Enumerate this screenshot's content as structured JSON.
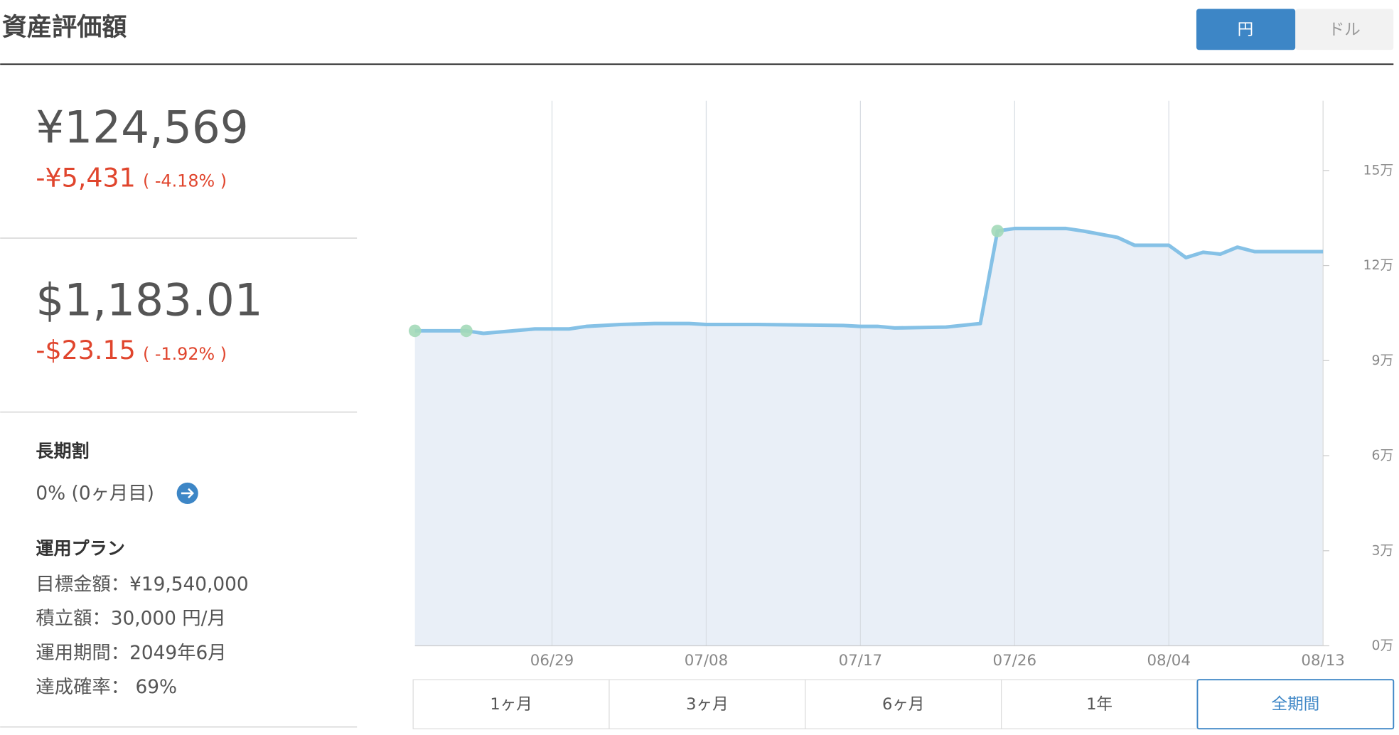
{
  "header": {
    "title": "資産評価額",
    "toggle": [
      "円",
      "ドル"
    ]
  },
  "summary": [
    {
      "amount": "¥124,569",
      "change": "-¥5,431",
      "change_pct": "( -4.18% )"
    },
    {
      "amount": "$1,183.01",
      "change": "-$23.15",
      "change_pct": "( -1.92% )"
    }
  ],
  "discount": {
    "title": "長期割",
    "text": "0% (0ヶ月目)"
  },
  "plan": {
    "title": "運用プラン",
    "lines": [
      "目標金額：¥19,540,000",
      "積立額：30,000 円/月",
      "運用期間：2049年6月",
      "達成確率： 69%"
    ]
  },
  "chart_data": {
    "type": "area",
    "x": [
      "06/21",
      "06/24",
      "06/25",
      "06/28",
      "06/30",
      "07/01",
      "07/03",
      "07/05",
      "07/07",
      "07/08",
      "07/10",
      "07/11",
      "07/16",
      "07/17",
      "07/18",
      "07/19",
      "07/22",
      "07/24",
      "07/25",
      "07/26",
      "07/29",
      "07/30",
      "08/01",
      "08/02",
      "08/04",
      "08/05",
      "08/06",
      "08/07",
      "08/08",
      "08/09",
      "08/13"
    ],
    "values": [
      9.94,
      9.94,
      9.86,
      10.0,
      10.0,
      10.08,
      10.14,
      10.17,
      10.17,
      10.14,
      10.14,
      10.14,
      10.11,
      10.08,
      10.08,
      10.03,
      10.06,
      10.17,
      13.09,
      13.17,
      13.17,
      13.09,
      12.89,
      12.64,
      12.64,
      12.25,
      12.42,
      12.36,
      12.58,
      12.44,
      12.44
    ],
    "color": "#85c1e6",
    "fill": "#e9eff7",
    "highlight_x": [
      "06/21",
      "06/24",
      "07/25"
    ],
    "highlight_color": "#a3d9b8",
    "xlim": [
      "06/21",
      "08/13"
    ],
    "xticks": [
      "06/29",
      "07/08",
      "07/17",
      "07/26",
      "08/04",
      "08/13"
    ],
    "ylim": [
      0,
      17.2
    ],
    "yticks": [
      {
        "value": 0,
        "label": "0万"
      },
      {
        "value": 3,
        "label": "3万"
      },
      {
        "value": 6,
        "label": "6万"
      },
      {
        "value": 9,
        "label": "9万"
      },
      {
        "value": 12,
        "label": "12万"
      },
      {
        "value": 15,
        "label": "15万"
      }
    ],
    "grid": true
  },
  "ranges": [
    "1ヶ月",
    "3ヶ月",
    "6ヶ月",
    "1年",
    "全期間"
  ],
  "selected_range": 4
}
